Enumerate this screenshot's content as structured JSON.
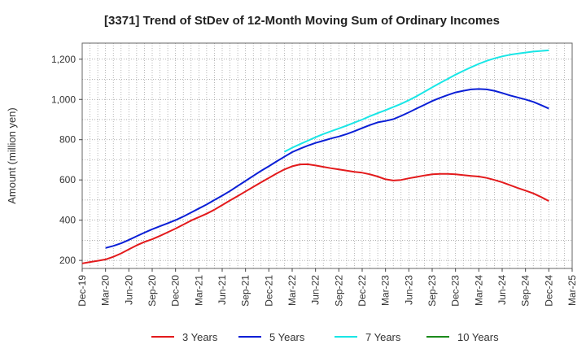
{
  "chart_data": {
    "type": "line",
    "title": "[3371]  Trend of StDev of 12-Month Moving Sum of Ordinary Incomes",
    "xlabel": "",
    "ylabel": "Amount (million yen)",
    "ylim": [
      160,
      1280
    ],
    "yticks": [
      200,
      400,
      600,
      800,
      1000,
      1200
    ],
    "ytick_labels": [
      "200",
      "400",
      "600",
      "800",
      "1,000",
      "1,200"
    ],
    "x_tick_labels": [
      "Dec-19",
      "Mar-20",
      "Jun-20",
      "Sep-20",
      "Dec-20",
      "Mar-21",
      "Jun-21",
      "Sep-21",
      "Dec-21",
      "Mar-22",
      "Jun-22",
      "Sep-22",
      "Dec-22",
      "Mar-23",
      "Jun-23",
      "Sep-23",
      "Dec-23",
      "Mar-24",
      "Jun-24",
      "Sep-24",
      "Dec-24",
      "Mar-25"
    ],
    "grid": true,
    "legend_position": "bottom",
    "series": [
      {
        "name": "3 Years",
        "color": "#e31a1c",
        "x": [
          "Dec-19",
          "Jan-20",
          "Feb-20",
          "Mar-20",
          "Apr-20",
          "May-20",
          "Jun-20",
          "Jul-20",
          "Aug-20",
          "Sep-20",
          "Oct-20",
          "Nov-20",
          "Dec-20",
          "Jan-21",
          "Feb-21",
          "Mar-21",
          "Apr-21",
          "May-21",
          "Jun-21",
          "Jul-21",
          "Aug-21",
          "Sep-21",
          "Oct-21",
          "Nov-21",
          "Dec-21",
          "Jan-22",
          "Feb-22",
          "Mar-22",
          "Apr-22",
          "May-22",
          "Jun-22",
          "Jul-22",
          "Aug-22",
          "Sep-22",
          "Oct-22",
          "Nov-22",
          "Dec-22",
          "Jan-23",
          "Feb-23",
          "Mar-23",
          "Apr-23",
          "May-23",
          "Jun-23",
          "Jul-23",
          "Aug-23",
          "Sep-23",
          "Oct-23",
          "Nov-23",
          "Dec-23",
          "Jan-24",
          "Feb-24",
          "Mar-24",
          "Apr-24",
          "May-24",
          "Jun-24",
          "Jul-24",
          "Aug-24",
          "Sep-24",
          "Oct-24",
          "Nov-24",
          "Dec-24"
        ],
        "values": [
          185,
          192,
          198,
          205,
          218,
          235,
          255,
          275,
          292,
          305,
          322,
          340,
          358,
          378,
          398,
          415,
          432,
          452,
          475,
          498,
          520,
          543,
          565,
          588,
          610,
          632,
          652,
          668,
          677,
          678,
          672,
          665,
          658,
          652,
          646,
          640,
          636,
          628,
          617,
          603,
          597,
          600,
          608,
          615,
          622,
          628,
          630,
          630,
          628,
          624,
          620,
          617,
          610,
          600,
          588,
          574,
          560,
          547,
          533,
          515,
          495
        ]
      },
      {
        "name": "5 Years",
        "color": "#0a1fd6",
        "x": [
          "Mar-20",
          "Apr-20",
          "May-20",
          "Jun-20",
          "Jul-20",
          "Aug-20",
          "Sep-20",
          "Oct-20",
          "Nov-20",
          "Dec-20",
          "Jan-21",
          "Feb-21",
          "Mar-21",
          "Apr-21",
          "May-21",
          "Jun-21",
          "Jul-21",
          "Aug-21",
          "Sep-21",
          "Oct-21",
          "Nov-21",
          "Dec-21",
          "Jan-22",
          "Feb-22",
          "Mar-22",
          "Apr-22",
          "May-22",
          "Jun-22",
          "Jul-22",
          "Aug-22",
          "Sep-22",
          "Oct-22",
          "Nov-22",
          "Dec-22",
          "Jan-23",
          "Feb-23",
          "Mar-23",
          "Apr-23",
          "May-23",
          "Jun-23",
          "Jul-23",
          "Aug-23",
          "Sep-23",
          "Oct-23",
          "Nov-23",
          "Dec-23",
          "Jan-24",
          "Feb-24",
          "Mar-24",
          "Apr-24",
          "May-24",
          "Jun-24",
          "Jul-24",
          "Aug-24",
          "Sep-24",
          "Oct-24",
          "Nov-24",
          "Dec-24"
        ],
        "values": [
          262,
          272,
          285,
          302,
          320,
          338,
          355,
          370,
          385,
          400,
          418,
          438,
          458,
          478,
          500,
          522,
          545,
          570,
          595,
          620,
          645,
          668,
          692,
          715,
          738,
          755,
          770,
          784,
          795,
          806,
          816,
          828,
          842,
          858,
          873,
          886,
          893,
          902,
          918,
          936,
          955,
          973,
          992,
          1008,
          1022,
          1035,
          1043,
          1050,
          1052,
          1050,
          1043,
          1032,
          1020,
          1010,
          1000,
          988,
          972,
          955
        ]
      },
      {
        "name": "7 Years",
        "color": "#19e6e6",
        "x": [
          "Feb-22",
          "Mar-22",
          "Apr-22",
          "May-22",
          "Jun-22",
          "Jul-22",
          "Aug-22",
          "Sep-22",
          "Oct-22",
          "Nov-22",
          "Dec-22",
          "Jan-23",
          "Feb-23",
          "Mar-23",
          "Apr-23",
          "May-23",
          "Jun-23",
          "Jul-23",
          "Aug-23",
          "Sep-23",
          "Oct-23",
          "Nov-23",
          "Dec-23",
          "Jan-24",
          "Feb-24",
          "Mar-24",
          "Apr-24",
          "May-24",
          "Jun-24",
          "Jul-24",
          "Aug-24",
          "Sep-24",
          "Oct-24",
          "Nov-24",
          "Dec-24"
        ],
        "values": [
          740,
          760,
          778,
          795,
          812,
          828,
          842,
          856,
          870,
          885,
          900,
          917,
          932,
          947,
          962,
          978,
          996,
          1016,
          1038,
          1060,
          1082,
          1102,
          1123,
          1142,
          1160,
          1177,
          1192,
          1204,
          1214,
          1222,
          1228,
          1233,
          1238,
          1241,
          1244
        ]
      },
      {
        "name": "10 Years",
        "color": "#1b8a1b",
        "x": [],
        "values": []
      }
    ]
  }
}
